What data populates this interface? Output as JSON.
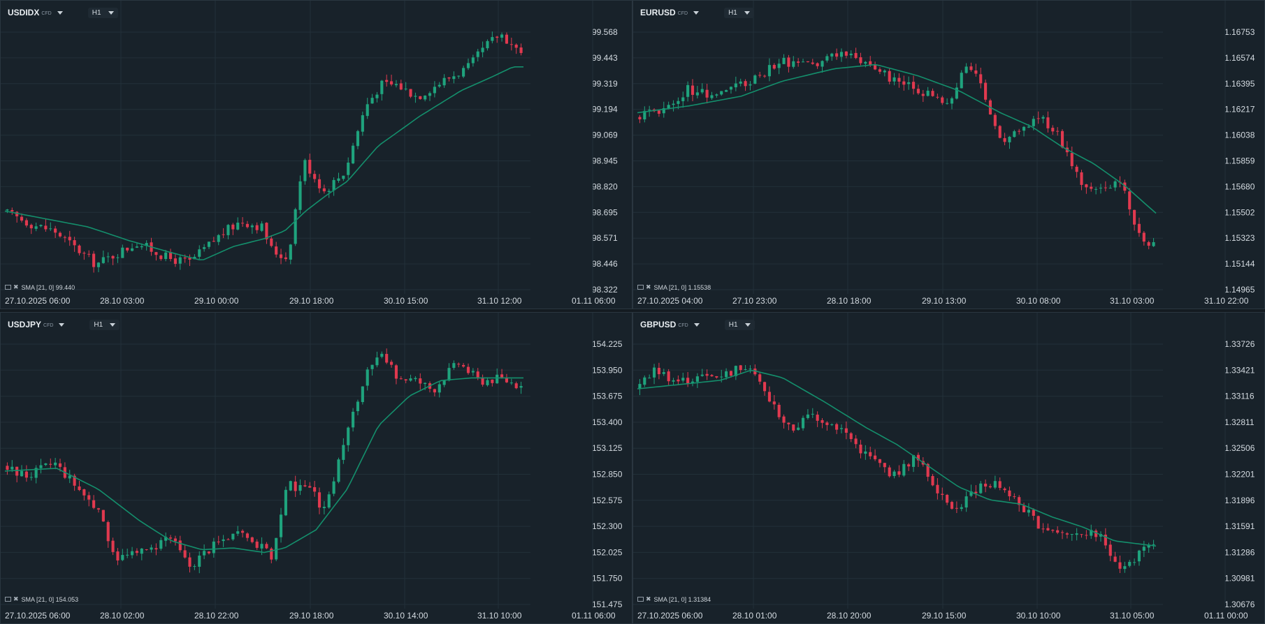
{
  "theme": {
    "background": "#141b21",
    "panel_background": "#18222a",
    "grid": "#223039",
    "axis_text": "#d4dbe1",
    "bull": "#1fa37d",
    "bear": "#e0394f",
    "sma_line": "#148f6c"
  },
  "icons": {
    "dropdown": "chevron-down-icon",
    "sma": "indicator-icon",
    "remove": "close-icon"
  },
  "panels": [
    {
      "symbol": "USDIDX",
      "tag": "CFD",
      "timeframe": "H1",
      "sma_label": "SMA [21, 0]",
      "sma_value": "99.440"
    },
    {
      "symbol": "EURUSD",
      "tag": "CFD",
      "timeframe": "H1",
      "sma_label": "SMA [21, 0]",
      "sma_value": "1.15538"
    },
    {
      "symbol": "USDJPY",
      "tag": "CFD",
      "timeframe": "H1",
      "sma_label": "SMA [21, 0]",
      "sma_value": "154.053"
    },
    {
      "symbol": "GBPUSD",
      "tag": "CFD",
      "timeframe": "H1",
      "sma_label": "SMA [21, 0]",
      "sma_value": "1.31384"
    }
  ],
  "chart_data": [
    {
      "type": "candlestick",
      "symbol": "USDIDX",
      "interval": "H1",
      "ylim": [
        98.322,
        99.693
      ],
      "y_ticks": [
        "99.568",
        "99.443",
        "99.319",
        "99.194",
        "99.069",
        "98.945",
        "98.820",
        "98.695",
        "98.571",
        "98.446",
        "98.322"
      ],
      "x_ticks": [
        "27.10.2025  06:00",
        "28.10  03:00",
        "29.10  00:00",
        "29.10  18:00",
        "30.10  15:00",
        "31.10  12:00",
        "01.11  06:00"
      ],
      "grid": true,
      "series": [
        {
          "name": "SMA [21, 0]",
          "kind": "line",
          "anchors": [
            [
              0,
              98.72
            ],
            [
              0.08,
              98.68
            ],
            [
              0.16,
              98.64
            ],
            [
              0.24,
              98.57
            ],
            [
              0.32,
              98.51
            ],
            [
              0.38,
              98.47
            ],
            [
              0.44,
              98.54
            ],
            [
              0.5,
              98.58
            ],
            [
              0.54,
              98.62
            ],
            [
              0.58,
              98.72
            ],
            [
              0.62,
              98.8
            ],
            [
              0.66,
              98.87
            ],
            [
              0.72,
              99.05
            ],
            [
              0.8,
              99.2
            ],
            [
              0.88,
              99.33
            ],
            [
              0.94,
              99.4
            ],
            [
              0.98,
              99.45
            ]
          ]
        },
        {
          "name": "price",
          "kind": "candles",
          "first_open": 98.72,
          "last_close": 99.52,
          "anchors": [
            [
              0,
              98.72
            ],
            [
              0.06,
              98.65
            ],
            [
              0.1,
              98.62
            ],
            [
              0.18,
              98.45
            ],
            [
              0.26,
              98.56
            ],
            [
              0.32,
              98.48
            ],
            [
              0.36,
              98.46
            ],
            [
              0.42,
              98.6
            ],
            [
              0.46,
              98.67
            ],
            [
              0.5,
              98.64
            ],
            [
              0.52,
              98.52
            ],
            [
              0.55,
              98.48
            ],
            [
              0.58,
              98.98
            ],
            [
              0.62,
              98.82
            ],
            [
              0.66,
              98.92
            ],
            [
              0.7,
              99.25
            ],
            [
              0.73,
              99.36
            ],
            [
              0.76,
              99.36
            ],
            [
              0.8,
              99.3
            ],
            [
              0.85,
              99.38
            ],
            [
              0.9,
              99.45
            ],
            [
              0.93,
              99.55
            ],
            [
              0.96,
              99.62
            ],
            [
              1.0,
              99.52
            ]
          ]
        }
      ]
    },
    {
      "type": "candlestick",
      "symbol": "EURUSD",
      "interval": "H1",
      "ylim": [
        1.14965,
        1.16932
      ],
      "y_ticks": [
        "1.16753",
        "1.16574",
        "1.16395",
        "1.16217",
        "1.16038",
        "1.15859",
        "1.15680",
        "1.15502",
        "1.15323",
        "1.15144",
        "1.14965"
      ],
      "x_ticks": [
        "27.10.2025  04:00",
        "27.10  23:00",
        "28.10  18:00",
        "29.10  13:00",
        "30.10  08:00",
        "31.10  03:00",
        "31.10  22:00"
      ],
      "grid": true,
      "series": [
        {
          "name": "SMA [21, 0]",
          "kind": "line",
          "anchors": [
            [
              0,
              1.1625
            ],
            [
              0.1,
              1.163
            ],
            [
              0.2,
              1.1637
            ],
            [
              0.28,
              1.1648
            ],
            [
              0.38,
              1.1657
            ],
            [
              0.46,
              1.166
            ],
            [
              0.54,
              1.1652
            ],
            [
              0.62,
              1.1641
            ],
            [
              0.7,
              1.1625
            ],
            [
              0.76,
              1.1615
            ],
            [
              0.82,
              1.16
            ],
            [
              0.88,
              1.1588
            ],
            [
              0.94,
              1.1572
            ],
            [
              1.0,
              1.1552
            ]
          ]
        },
        {
          "name": "price",
          "kind": "candles",
          "first_open": 1.1622,
          "last_close": 1.1531,
          "anchors": [
            [
              0,
              1.1622
            ],
            [
              0.06,
              1.1628
            ],
            [
              0.1,
              1.1642
            ],
            [
              0.16,
              1.1638
            ],
            [
              0.22,
              1.1648
            ],
            [
              0.28,
              1.1662
            ],
            [
              0.34,
              1.1658
            ],
            [
              0.4,
              1.167
            ],
            [
              0.46,
              1.166
            ],
            [
              0.5,
              1.1648
            ],
            [
              0.56,
              1.164
            ],
            [
              0.6,
              1.163
            ],
            [
              0.64,
              1.166
            ],
            [
              0.67,
              1.1645
            ],
            [
              0.7,
              1.1605
            ],
            [
              0.74,
              1.161
            ],
            [
              0.78,
              1.1622
            ],
            [
              0.81,
              1.1612
            ],
            [
              0.84,
              1.159
            ],
            [
              0.86,
              1.1572
            ],
            [
              0.88,
              1.1568
            ],
            [
              0.92,
              1.1572
            ],
            [
              0.94,
              1.1574
            ],
            [
              0.96,
              1.155
            ],
            [
              0.98,
              1.1528
            ],
            [
              1.0,
              1.1531
            ]
          ]
        }
      ]
    },
    {
      "type": "candlestick",
      "symbol": "USDJPY",
      "interval": "H1",
      "ylim": [
        151.475,
        154.5
      ],
      "y_ticks": [
        "154.225",
        "153.950",
        "153.675",
        "153.400",
        "153.125",
        "152.850",
        "152.575",
        "152.300",
        "152.025",
        "151.750",
        "151.475"
      ],
      "x_ticks": [
        "27.10.2025  06:00",
        "28.10  02:00",
        "28.10  22:00",
        "29.10  18:00",
        "30.10  14:00",
        "31.10  10:00",
        "01.11  06:00"
      ],
      "grid": true,
      "series": [
        {
          "name": "SMA [21, 0]",
          "kind": "line",
          "anchors": [
            [
              0,
              152.95
            ],
            [
              0.1,
              152.98
            ],
            [
              0.18,
              152.75
            ],
            [
              0.26,
              152.4
            ],
            [
              0.32,
              152.18
            ],
            [
              0.38,
              152.08
            ],
            [
              0.44,
              152.1
            ],
            [
              0.5,
              152.05
            ],
            [
              0.54,
              152.1
            ],
            [
              0.6,
              152.3
            ],
            [
              0.66,
              152.75
            ],
            [
              0.72,
              153.45
            ],
            [
              0.78,
              153.78
            ],
            [
              0.84,
              153.95
            ],
            [
              0.9,
              153.98
            ],
            [
              1.0,
              153.98
            ]
          ]
        },
        {
          "name": "price",
          "kind": "candles",
          "first_open": 153.0,
          "last_close": 153.89,
          "anchors": [
            [
              0,
              153.0
            ],
            [
              0.05,
              152.9
            ],
            [
              0.1,
              153.05
            ],
            [
              0.18,
              152.55
            ],
            [
              0.22,
              152.0
            ],
            [
              0.28,
              152.05
            ],
            [
              0.32,
              152.25
            ],
            [
              0.36,
              151.9
            ],
            [
              0.4,
              152.1
            ],
            [
              0.44,
              152.25
            ],
            [
              0.48,
              152.2
            ],
            [
              0.52,
              152.0
            ],
            [
              0.55,
              152.8
            ],
            [
              0.6,
              152.7
            ],
            [
              0.62,
              152.5
            ],
            [
              0.66,
              153.3
            ],
            [
              0.7,
              154.0
            ],
            [
              0.73,
              154.22
            ],
            [
              0.76,
              154.0
            ],
            [
              0.8,
              153.95
            ],
            [
              0.83,
              153.85
            ],
            [
              0.86,
              154.05
            ],
            [
              0.88,
              154.15
            ],
            [
              0.92,
              153.95
            ],
            [
              0.96,
              153.98
            ],
            [
              1.0,
              153.89
            ]
          ]
        }
      ]
    },
    {
      "type": "candlestick",
      "symbol": "GBPUSD",
      "interval": "H1",
      "ylim": [
        1.30676,
        1.33879
      ],
      "y_ticks": [
        "1.33726",
        "1.33421",
        "1.33116",
        "1.32811",
        "1.32506",
        "1.32201",
        "1.31896",
        "1.31591",
        "1.31286",
        "1.30981",
        "1.30676"
      ],
      "x_ticks": [
        "27.10.2025  06:00",
        "28.10  01:00",
        "28.10  20:00",
        "29.10  15:00",
        "30.10  10:00",
        "31.10  05:00",
        "01.11  00:00"
      ],
      "grid": true,
      "series": [
        {
          "name": "SMA [21, 0]",
          "kind": "line",
          "anchors": [
            [
              0,
              1.332
            ],
            [
              0.08,
              1.3325
            ],
            [
              0.16,
              1.333
            ],
            [
              0.22,
              1.3342
            ],
            [
              0.28,
              1.3333
            ],
            [
              0.36,
              1.3305
            ],
            [
              0.44,
              1.3275
            ],
            [
              0.5,
              1.3255
            ],
            [
              0.56,
              1.323
            ],
            [
              0.62,
              1.3205
            ],
            [
              0.68,
              1.319
            ],
            [
              0.74,
              1.3185
            ],
            [
              0.8,
              1.317
            ],
            [
              0.86,
              1.3158
            ],
            [
              0.92,
              1.3142
            ],
            [
              1.0,
              1.3136
            ]
          ]
        },
        {
          "name": "price",
          "kind": "candles",
          "first_open": 1.332,
          "last_close": 1.3138,
          "anchors": [
            [
              0,
              1.332
            ],
            [
              0.04,
              1.3342
            ],
            [
              0.08,
              1.3328
            ],
            [
              0.14,
              1.3334
            ],
            [
              0.18,
              1.3338
            ],
            [
              0.22,
              1.335
            ],
            [
              0.25,
              1.3315
            ],
            [
              0.3,
              1.327
            ],
            [
              0.34,
              1.329
            ],
            [
              0.4,
              1.3272
            ],
            [
              0.44,
              1.3245
            ],
            [
              0.5,
              1.3218
            ],
            [
              0.54,
              1.324
            ],
            [
              0.58,
              1.3205
            ],
            [
              0.62,
              1.3178
            ],
            [
              0.66,
              1.3205
            ],
            [
              0.7,
              1.321
            ],
            [
              0.74,
              1.3185
            ],
            [
              0.78,
              1.316
            ],
            [
              0.82,
              1.315
            ],
            [
              0.86,
              1.3155
            ],
            [
              0.9,
              1.3145
            ],
            [
              0.94,
              1.3108
            ],
            [
              0.97,
              1.3125
            ],
            [
              1.0,
              1.3138
            ]
          ]
        }
      ]
    }
  ]
}
